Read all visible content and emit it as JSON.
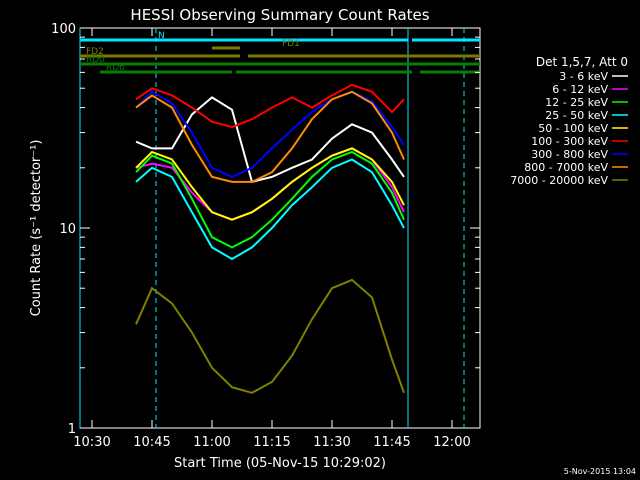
{
  "page": {
    "stamp": "5-Nov-2015 13:04"
  },
  "colors": {
    "background": "#000000",
    "axes": "#ffffff",
    "attenuator": "#00e5ff",
    "fd_flags": "#7a7a00",
    "rd_flags": "#0a7a0a"
  },
  "chart_data": {
    "type": "line",
    "title": "HESSI Observing Summary Count Rates",
    "xlabel": "Start Time (05-Nov-15 10:29:02)",
    "ylabel": "Count Rate (s⁻¹ detector⁻¹)",
    "y_scale": "log",
    "ylim": [
      1,
      100
    ],
    "xlim": [
      "10:27",
      "12:07"
    ],
    "x_ticks": [
      "10:30",
      "10:45",
      "11:00",
      "11:15",
      "11:30",
      "11:45",
      "12:00"
    ],
    "y_ticks": [
      "1",
      "10",
      "100"
    ],
    "grid": false,
    "legend_header": "Det 1,5,7, Att 0",
    "legend_position": "right",
    "flags": [
      {
        "label": "N",
        "color": "#00e5ff",
        "segments": [
          [
            "10:27",
            "11:49"
          ],
          [
            "11:50",
            "12:07"
          ]
        ]
      },
      {
        "label": "FD1",
        "color": "#7a7a00",
        "segments": [
          [
            "11:00",
            "11:07"
          ]
        ]
      },
      {
        "label": "FD2",
        "color": "#7a7a00",
        "segments": [
          [
            "10:27",
            "11:07"
          ],
          [
            "11:09",
            "12:07"
          ]
        ]
      },
      {
        "label": "RD0",
        "color": "#0a7a0a",
        "segments": [
          [
            "10:27",
            "11:06"
          ],
          [
            "11:06",
            "12:07"
          ]
        ]
      },
      {
        "label": "RD6",
        "color": "#0a7a0a",
        "segments": [
          [
            "10:32",
            "11:05"
          ],
          [
            "11:06",
            "11:31"
          ],
          [
            "11:31",
            "11:50"
          ],
          [
            "11:52",
            "12:07"
          ]
        ]
      }
    ],
    "vlines": [
      {
        "x": "10:27",
        "style": "solid",
        "color": "#00e5ff"
      },
      {
        "x": "10:46",
        "style": "dashed",
        "color": "#00e5ff"
      },
      {
        "x": "11:49",
        "style": "solid",
        "color": "#00e5ff"
      },
      {
        "x": "12:03",
        "style": "dashed",
        "color": "#00e5ff"
      }
    ],
    "series": [
      {
        "name": "3 - 6 keV",
        "color": "#ffffff",
        "x": [
          "10:41",
          "10:45",
          "10:50",
          "10:55",
          "11:00",
          "11:05",
          "11:10",
          "11:15",
          "11:20",
          "11:25",
          "11:30",
          "11:35",
          "11:40",
          "11:45",
          "11:48"
        ],
        "values": [
          27,
          25,
          25,
          37,
          45,
          39,
          17,
          18,
          20,
          22,
          28,
          33,
          30,
          22,
          18
        ]
      },
      {
        "name": "6 - 12 keV",
        "color": "#ff00ff",
        "x": [
          "10:41",
          "10:45",
          "10:50",
          "10:55",
          "11:00",
          "11:05",
          "11:10",
          "11:15",
          "11:20",
          "11:25",
          "11:30",
          "11:35",
          "11:40",
          "11:45",
          "11:48"
        ],
        "values": [
          20,
          21,
          20,
          15,
          12,
          11,
          12,
          14,
          17,
          20,
          23,
          25,
          22,
          16,
          12
        ]
      },
      {
        "name": "12 - 25 keV",
        "color": "#00ff00",
        "x": [
          "10:41",
          "10:45",
          "10:50",
          "10:55",
          "11:00",
          "11:05",
          "11:10",
          "11:15",
          "11:20",
          "11:25",
          "11:30",
          "11:35",
          "11:40",
          "11:45",
          "11:48"
        ],
        "values": [
          19,
          23,
          21,
          14,
          9,
          8,
          9,
          11,
          14,
          18,
          22,
          24,
          21,
          15,
          11
        ]
      },
      {
        "name": "25 - 50 keV",
        "color": "#00ffff",
        "x": [
          "10:41",
          "10:45",
          "10:50",
          "10:55",
          "11:00",
          "11:05",
          "11:10",
          "11:15",
          "11:20",
          "11:25",
          "11:30",
          "11:35",
          "11:40",
          "11:45",
          "11:48"
        ],
        "values": [
          17,
          20,
          18,
          12,
          8,
          7,
          8,
          10,
          13,
          16,
          20,
          22,
          19,
          13,
          10
        ]
      },
      {
        "name": "50 - 100 keV",
        "color": "#ffff00",
        "x": [
          "10:41",
          "10:45",
          "10:50",
          "10:55",
          "11:00",
          "11:05",
          "11:10",
          "11:15",
          "11:20",
          "11:25",
          "11:30",
          "11:35",
          "11:40",
          "11:45",
          "11:48"
        ],
        "values": [
          20,
          24,
          22,
          16,
          12,
          11,
          12,
          14,
          17,
          20,
          23,
          25,
          22,
          17,
          13
        ]
      },
      {
        "name": "100 - 300 keV",
        "color": "#ff0000",
        "x": [
          "10:41",
          "10:45",
          "10:50",
          "10:55",
          "11:00",
          "11:05",
          "11:10",
          "11:15",
          "11:20",
          "11:25",
          "11:30",
          "11:35",
          "11:40",
          "11:45",
          "11:48"
        ],
        "values": [
          44,
          50,
          46,
          40,
          34,
          32,
          35,
          40,
          45,
          40,
          46,
          52,
          48,
          38,
          44
        ]
      },
      {
        "name": "300 - 800 keV",
        "color": "#0000ff",
        "x": [
          "10:41",
          "10:45",
          "10:50",
          "10:55",
          "11:00",
          "11:05",
          "11:10",
          "11:15",
          "11:20",
          "11:25",
          "11:30",
          "11:35",
          "11:40",
          "11:45",
          "11:48"
        ],
        "values": [
          40,
          48,
          42,
          30,
          20,
          18,
          20,
          25,
          31,
          38,
          44,
          48,
          43,
          32,
          26
        ]
      },
      {
        "name": "800 - 7000 keV",
        "color": "#ff8c00",
        "x": [
          "10:41",
          "10:45",
          "10:50",
          "10:55",
          "11:00",
          "11:05",
          "11:10",
          "11:15",
          "11:20",
          "11:25",
          "11:30",
          "11:35",
          "11:40",
          "11:45",
          "11:48"
        ],
        "values": [
          40,
          46,
          40,
          26,
          18,
          17,
          17,
          19,
          25,
          35,
          44,
          48,
          42,
          30,
          22
        ]
      },
      {
        "name": "7000 - 20000 keV",
        "color": "#808000",
        "x": [
          "10:41",
          "10:45",
          "10:50",
          "10:55",
          "11:00",
          "11:05",
          "11:10",
          "11:15",
          "11:20",
          "11:25",
          "11:30",
          "11:35",
          "11:40",
          "11:45",
          "11:48"
        ],
        "values": [
          3.3,
          5,
          4.2,
          3,
          2,
          1.6,
          1.5,
          1.7,
          2.3,
          3.5,
          5,
          5.5,
          4.5,
          2.2,
          1.5
        ]
      }
    ]
  }
}
